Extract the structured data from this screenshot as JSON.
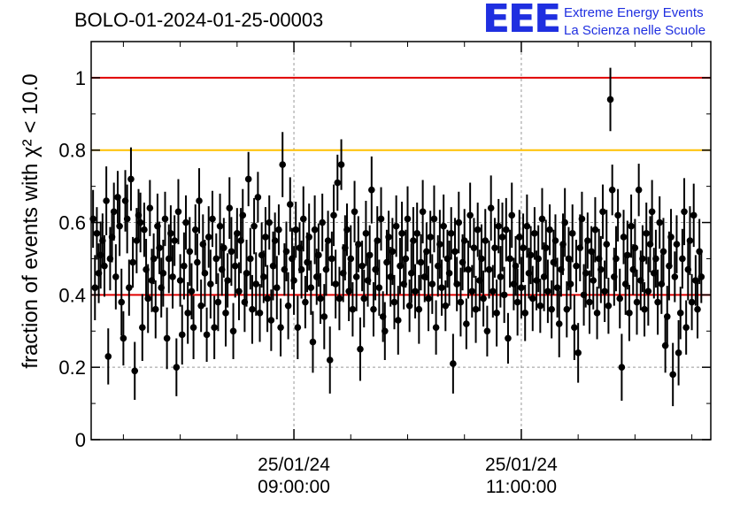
{
  "header": {
    "run_title": "BOLO-01-2024-01-25-00003",
    "logo_mark": "EEE",
    "logo_line1": "Extreme Energy Events",
    "logo_line2": "La Scienza nelle Scuole"
  },
  "colors": {
    "points": "#000000",
    "red_line": "#e00000",
    "yellow_line": "#ffc000",
    "grid": "#999999",
    "logo": "#1f2fe0"
  },
  "chart_data": {
    "type": "scatter",
    "title": "BOLO-01-2024-01-25-00003",
    "ylabel": "fraction of events with χ² < 10.0",
    "xlabel": "",
    "ylim": [
      0,
      1.1
    ],
    "yticks": [
      0,
      0.2,
      0.4,
      0.6,
      0.8,
      1
    ],
    "ytick_labels": [
      "0",
      "0.2",
      "0.4",
      "0.6",
      "0.8",
      "1"
    ],
    "xlim": [
      "2024-01-25 07:13",
      "2024-01-25 12:40"
    ],
    "xticks": [
      {
        "time": "2024-01-25 09:00",
        "date_label": "25/01/24",
        "time_label": "09:00:00"
      },
      {
        "time": "2024-01-25 11:00",
        "date_label": "25/01/24",
        "time_label": "11:00:00"
      }
    ],
    "minor_xticks": [
      "07:30",
      "08:00",
      "08:30",
      "09:30",
      "10:00",
      "10:30",
      "11:30",
      "12:00",
      "12:30"
    ],
    "grid": true,
    "reference_lines": [
      {
        "y": 1.0,
        "color": "red"
      },
      {
        "y": 0.8,
        "color": "yellow"
      },
      {
        "y": 0.4,
        "color": "red"
      }
    ],
    "series": [
      {
        "x_start": "2024-01-25 07:13",
        "x_step_seconds": 60,
        "values": [
          0.53,
          0.61,
          0.42,
          0.57,
          0.46,
          0.51,
          0.55,
          0.48,
          0.66,
          0.23,
          0.5,
          0.56,
          0.63,
          0.45,
          0.67,
          0.59,
          0.38,
          0.28,
          0.66,
          0.61,
          0.42,
          0.72,
          0.49,
          0.19,
          0.55,
          0.62,
          0.6,
          0.31,
          0.58,
          0.47,
          0.39,
          0.64,
          0.44,
          0.5,
          0.36,
          0.59,
          0.53,
          0.42,
          0.46,
          0.61,
          0.28,
          0.5,
          0.57,
          0.45,
          0.55,
          0.2,
          0.63,
          0.44,
          0.29,
          0.48,
          0.6,
          0.35,
          0.52,
          0.41,
          0.31,
          0.58,
          0.49,
          0.66,
          0.37,
          0.54,
          0.46,
          0.29,
          0.56,
          0.43,
          0.61,
          0.31,
          0.5,
          0.38,
          0.59,
          0.47,
          0.53,
          0.35,
          0.44,
          0.64,
          0.52,
          0.3,
          0.48,
          0.57,
          0.41,
          0.55,
          0.62,
          0.38,
          0.46,
          0.72,
          0.5,
          0.36,
          0.59,
          0.43,
          0.67,
          0.35,
          0.51,
          0.45,
          0.56,
          0.39,
          0.6,
          0.33,
          0.48,
          0.55,
          0.42,
          0.58,
          0.31,
          0.76,
          0.47,
          0.52,
          0.37,
          0.65,
          0.5,
          0.44,
          0.58,
          0.31,
          0.53,
          0.47,
          0.61,
          0.38,
          0.49,
          0.56,
          0.42,
          0.27,
          0.58,
          0.45,
          0.51,
          0.39,
          0.6,
          0.34,
          0.47,
          0.55,
          0.22,
          0.5,
          0.62,
          0.43,
          0.71,
          0.39,
          0.76,
          0.46,
          0.53,
          0.58,
          0.41,
          0.5,
          0.36,
          0.63,
          0.45,
          0.54,
          0.25,
          0.48,
          0.39,
          0.57,
          0.44,
          0.51,
          0.69,
          0.36,
          0.47,
          0.55,
          0.42,
          0.61,
          0.34,
          0.3,
          0.49,
          0.56,
          0.45,
          0.52,
          0.38,
          0.59,
          0.33,
          0.48,
          0.57,
          0.43,
          0.5,
          0.61,
          0.37,
          0.46,
          0.55,
          0.41,
          0.57,
          0.36,
          0.49,
          0.63,
          0.45,
          0.52,
          0.39,
          0.56,
          0.43,
          0.61,
          0.31,
          0.48,
          0.54,
          0.42,
          0.59,
          0.37,
          0.5,
          0.46,
          0.57,
          0.21,
          0.52,
          0.43,
          0.6,
          0.38,
          0.49,
          0.55,
          0.32,
          0.47,
          0.62,
          0.41,
          0.53,
          0.36,
          0.58,
          0.44,
          0.5,
          0.39,
          0.55,
          0.3,
          0.47,
          0.64,
          0.41,
          0.53,
          0.35,
          0.59,
          0.45,
          0.56,
          0.4,
          0.58,
          0.28,
          0.5,
          0.62,
          0.43,
          0.48,
          0.38,
          0.56,
          0.42,
          0.53,
          0.35,
          0.59,
          0.46,
          0.51,
          0.39,
          0.57,
          0.44,
          0.5,
          0.37,
          0.61,
          0.45,
          0.53,
          0.41,
          0.58,
          0.36,
          0.49,
          0.55,
          0.42,
          0.32,
          0.47,
          0.54,
          0.6,
          0.36,
          0.5,
          0.43,
          0.57,
          0.31,
          0.48,
          0.24,
          0.53,
          0.61,
          0.4,
          0.46,
          0.55,
          0.38,
          0.52,
          0.44,
          0.58,
          0.35,
          0.5,
          0.47,
          0.63,
          0.41,
          0.54,
          0.37,
          0.94,
          0.69,
          0.45,
          0.5,
          0.62,
          0.39,
          0.2,
          0.56,
          0.43,
          0.51,
          0.35,
          0.59,
          0.47,
          0.53,
          0.38,
          0.69,
          0.44,
          0.5,
          0.36,
          0.57,
          0.41,
          0.54,
          0.63,
          0.46,
          0.5,
          0.38,
          0.6,
          0.43,
          0.52,
          0.26,
          0.34,
          0.48,
          0.56,
          0.18,
          0.45,
          0.54,
          0.24,
          0.35,
          0.5,
          0.63,
          0.31,
          0.47,
          0.55,
          0.38,
          0.62,
          0.44,
          0.36,
          0.52,
          0.45
        ]
      }
    ]
  }
}
